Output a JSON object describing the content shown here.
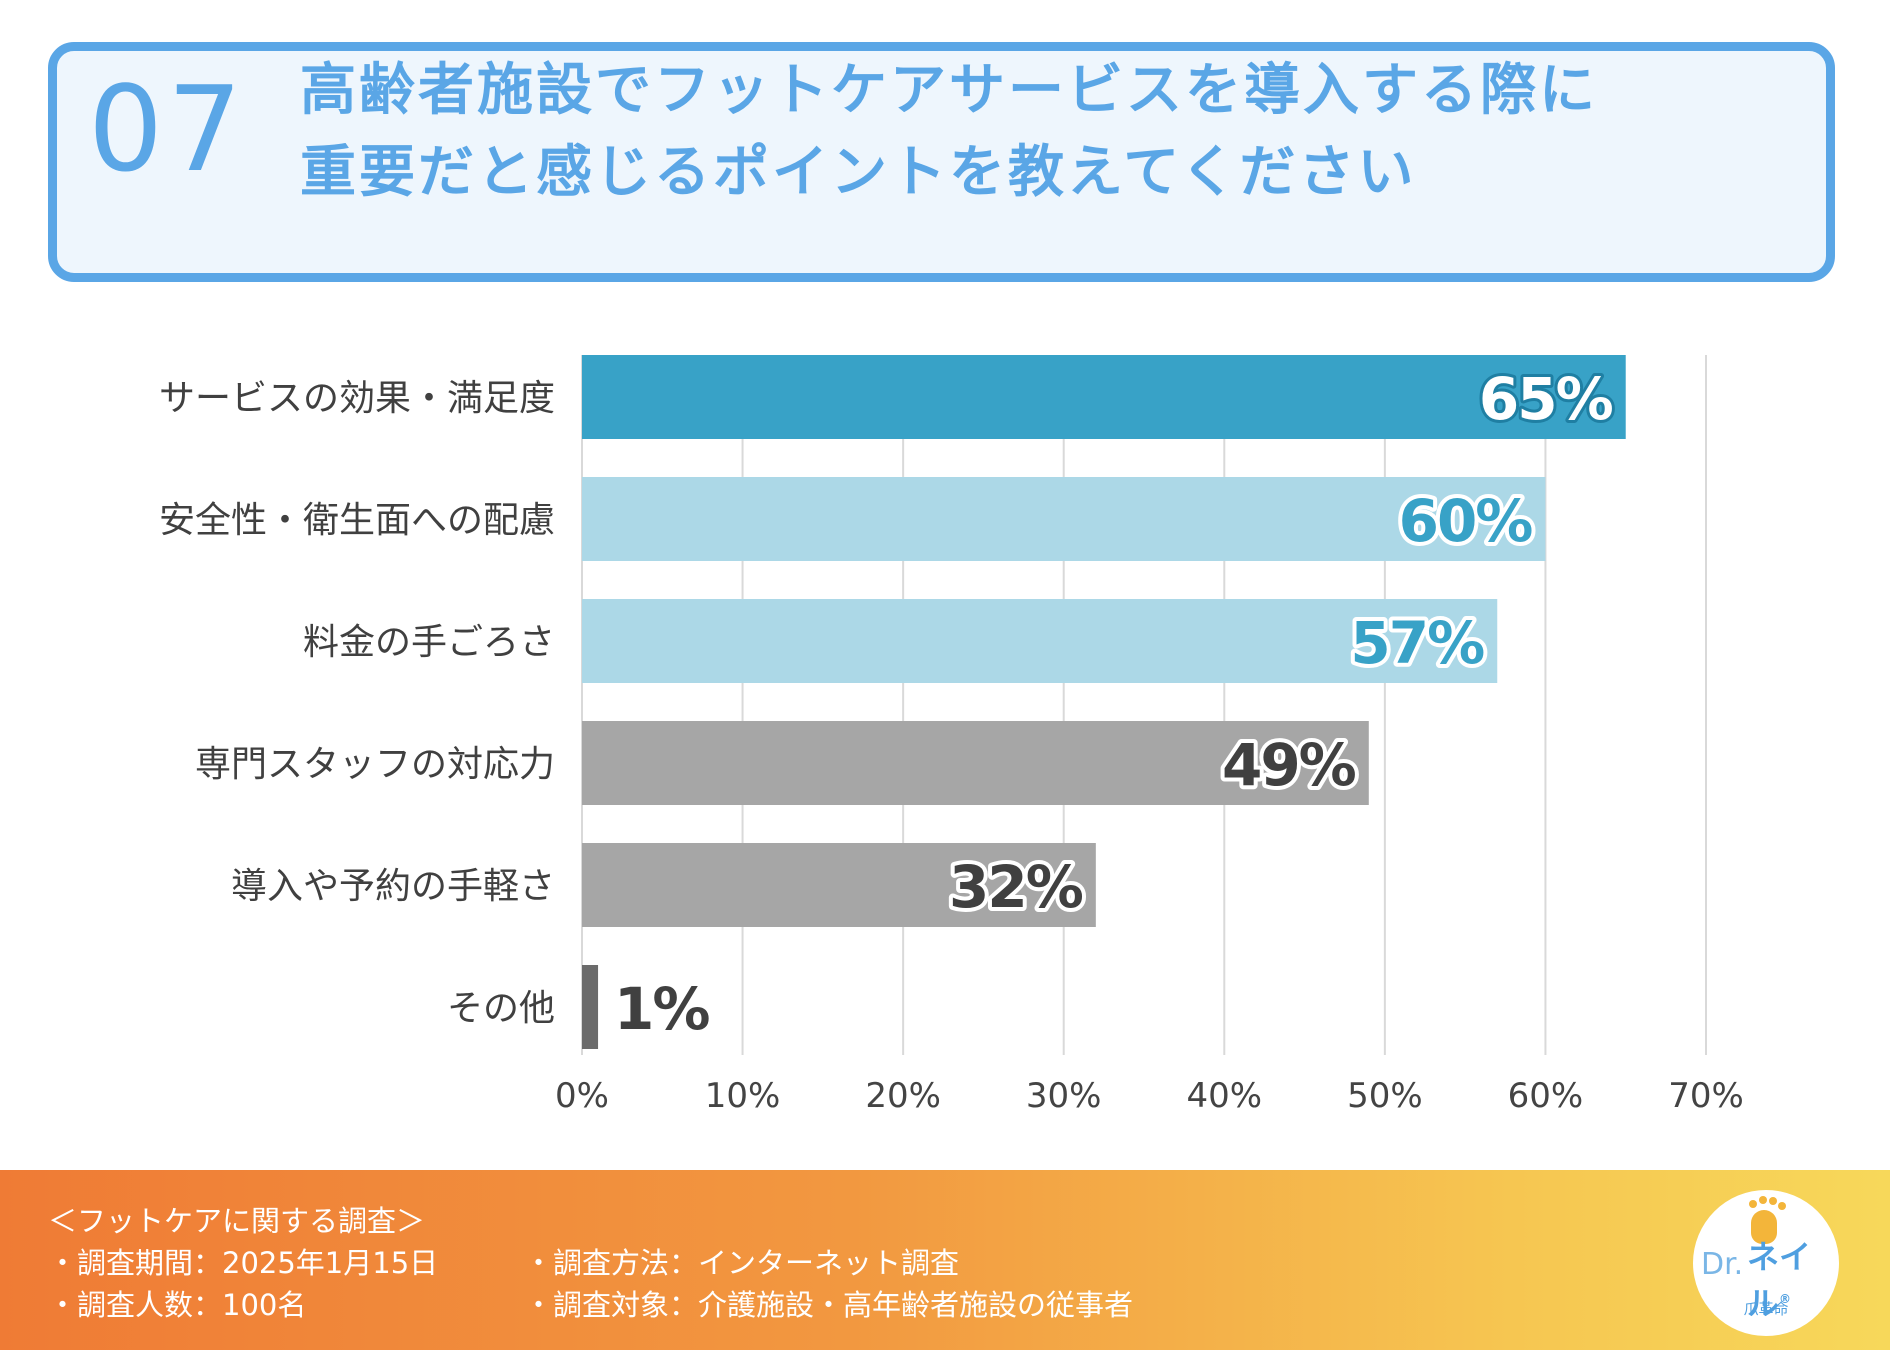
{
  "header": {
    "number": "07",
    "title_line1": "高齢者施設でフットケアサービスを導入する際に",
    "title_line2": "重要だと感じるポイントを教えてください"
  },
  "chart_data": {
    "type": "bar",
    "orientation": "horizontal",
    "title": "高齢者施設でフットケアサービスを導入する際に重要だと感じるポイントを教えてください",
    "categories": [
      "サービスの効果・満足度",
      "安全性・衛生面への配慮",
      "料金の手ごろさ",
      "専門スタッフの対応力",
      "導入や予約の手軽さ",
      "その他"
    ],
    "values": [
      65,
      60,
      57,
      49,
      32,
      1
    ],
    "value_labels": [
      "65%",
      "60%",
      "57%",
      "49%",
      "32%",
      "1%"
    ],
    "bar_colors": [
      "#38a2c7",
      "#acd8e7",
      "#acd8e7",
      "#a6a6a6",
      "#a6a6a6",
      "#6b6b6b"
    ],
    "label_colors": [
      "#ffffff",
      "#38a2c7",
      "#38a2c7",
      "#404040",
      "#404040",
      "#404040"
    ],
    "xlim": [
      0,
      70
    ],
    "xticks": [
      0,
      10,
      20,
      30,
      40,
      50,
      60,
      70
    ],
    "xtick_labels": [
      "0%",
      "10%",
      "20%",
      "30%",
      "40%",
      "50%",
      "60%",
      "70%"
    ],
    "grid": true,
    "unit": "%"
  },
  "footer": {
    "heading": "＜フットケアに関する調査＞",
    "period": "・調査期間：2025年1月15日",
    "method": "・調査方法：インターネット調査",
    "respondents": "・調査人数：100名",
    "target": "・調査対象：介護施設・高年齢者施設の従事者"
  },
  "logo": {
    "dr": "Dr.",
    "name": "ネイル",
    "registered": "®",
    "sub": "爪革命"
  }
}
